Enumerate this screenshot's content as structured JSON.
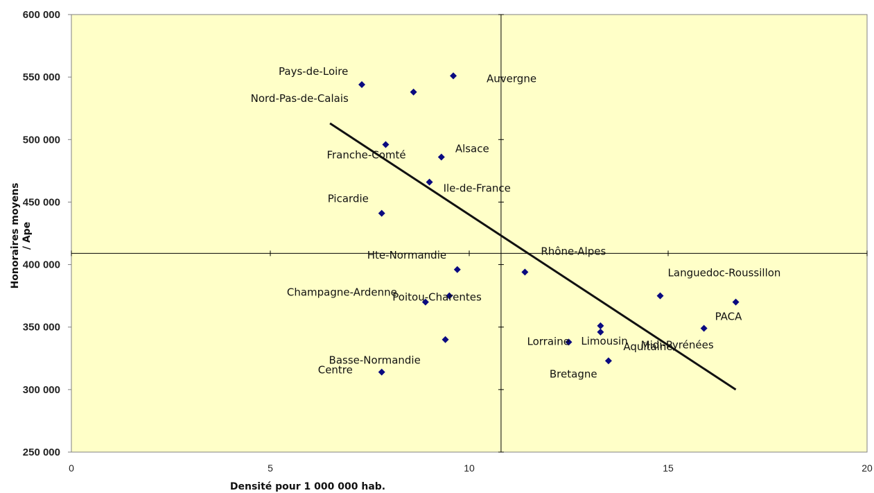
{
  "chart_data": {
    "type": "scatter",
    "title": "",
    "xlabel": "Densité pour 1 000 000 hab.",
    "ylabel": "Honoraires moyens / Ape",
    "xlim": [
      0,
      20
    ],
    "ylim": [
      250000,
      600000
    ],
    "x_ticks": [
      "0",
      "5",
      "10",
      "15",
      "20"
    ],
    "y_ticks": [
      "250 000",
      "300 000",
      "350 000",
      "400 000",
      "450 000",
      "500 000",
      "550 000",
      "600 000"
    ],
    "grid": false,
    "legend": "none",
    "quadrant_lines": {
      "x": 10.8,
      "y": 409000
    },
    "trendline": {
      "x": [
        6.5,
        16.7
      ],
      "y": [
        513000,
        300000
      ]
    },
    "marker_color": "#0a0a80",
    "background_color": "#ffffc8",
    "points": [
      {
        "label": "Pays-de-Loire",
        "x": 7.3,
        "y": 544000
      },
      {
        "label": "Nord-Pas-de-Calais",
        "x": 8.6,
        "y": 538000
      },
      {
        "label": "Auvergne",
        "x": 9.6,
        "y": 551000
      },
      {
        "label": "Franche-Comté",
        "x": 7.9,
        "y": 496000
      },
      {
        "label": "Alsace",
        "x": 9.3,
        "y": 486000
      },
      {
        "label": "Ile-de-France",
        "x": 9.0,
        "y": 466000
      },
      {
        "label": "Picardie",
        "x": 7.8,
        "y": 441000
      },
      {
        "label": "Hte-Normandie",
        "x": 9.7,
        "y": 396000
      },
      {
        "label": "Poitou-Charentes",
        "x": 9.5,
        "y": 375000
      },
      {
        "label": "Rhône-Alpes",
        "x": 11.4,
        "y": 394000
      },
      {
        "label": "Champagne-Ardenne",
        "x": 8.9,
        "y": 370000
      },
      {
        "label": "Basse-Normandie",
        "x": 9.4,
        "y": 340000
      },
      {
        "label": "Centre",
        "x": 7.8,
        "y": 314000
      },
      {
        "label": "Lorraine",
        "x": 12.5,
        "y": 338000
      },
      {
        "label": "Limousin",
        "x": 13.3,
        "y": 351000
      },
      {
        "label": "Aquitaine",
        "x": 13.3,
        "y": 346000
      },
      {
        "label": "Bretagne",
        "x": 13.5,
        "y": 323000
      },
      {
        "label": "Languedoc-Roussillon",
        "x": 14.8,
        "y": 375000
      },
      {
        "label": "Midi-Pyrénées",
        "x": 15.9,
        "y": 349000
      },
      {
        "label": "PACA",
        "x": 16.7,
        "y": 370000
      }
    ]
  }
}
